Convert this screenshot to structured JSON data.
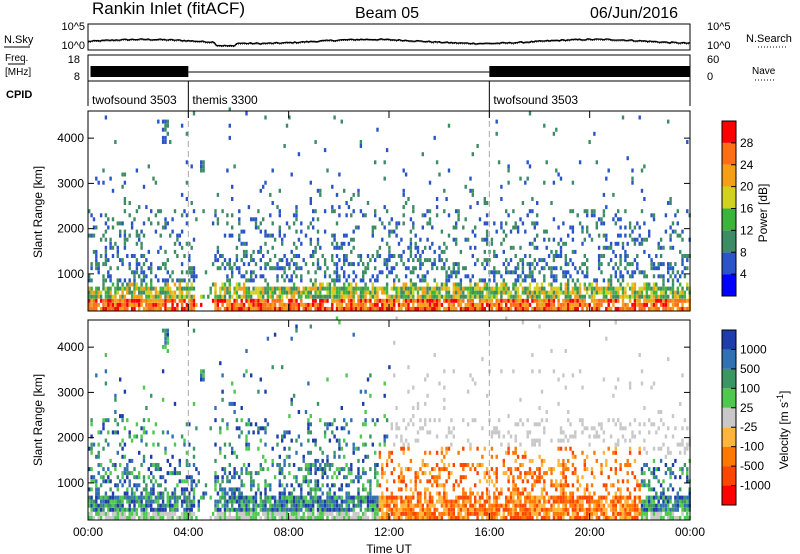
{
  "header": {
    "station": "Rankin Inlet (fitACF)",
    "beam": "Beam 05",
    "date": "06/Jun/2016"
  },
  "noise_panel": {
    "left_label": "N.Sky",
    "right_label": "N.Search",
    "left_ticks": [
      "10^5",
      "10^0"
    ],
    "right_ticks": [
      "10^5",
      "10^0"
    ],
    "right_legend_line": "dotted"
  },
  "freq_panel": {
    "left_label_1": "Freq.",
    "left_label_2": "[MHz]",
    "left_ticks": [
      "18",
      "8"
    ],
    "right_label": "Nave",
    "right_ticks": [
      "60",
      "0"
    ]
  },
  "cpid": {
    "label": "CPID",
    "segments": [
      {
        "name": "twofsound 3503",
        "start": 0.0,
        "end": 4.0
      },
      {
        "name": "themis 3300",
        "start": 4.0,
        "end": 16.0
      },
      {
        "name": "twofsound 3503",
        "start": 16.0,
        "end": 24.0
      }
    ]
  },
  "chart_data": [
    {
      "type": "heatmap",
      "name": "power",
      "ylabel": "Slant Range [km]",
      "xlim": [
        0,
        24
      ],
      "ylim": [
        180,
        4600
      ],
      "yticks": [
        "1000",
        "2000",
        "3000",
        "4000"
      ],
      "colorbar": {
        "label": "Power [dB]",
        "ticks": [
          "28",
          "24",
          "20",
          "16",
          "12",
          "8",
          "4"
        ],
        "colors": [
          "#0000ff",
          "#2a55c8",
          "#3c8c64",
          "#3cb43c",
          "#d2d21e",
          "#f5a014",
          "#ff6e14",
          "#ff0000"
        ]
      }
    },
    {
      "type": "heatmap",
      "name": "velocity",
      "ylabel": "Slant Range [km]",
      "xlabel": "Time UT",
      "xlim": [
        0,
        24
      ],
      "ylim": [
        180,
        4600
      ],
      "yticks": [
        "1000",
        "2000",
        "3000",
        "4000"
      ],
      "xticks": [
        "00:00",
        "04:00",
        "08:00",
        "12:00",
        "16:00",
        "20:00",
        "00:00"
      ],
      "colorbar": {
        "label": "Velocity [m s^-1]",
        "ticks": [
          "1000",
          "500",
          "100",
          "25",
          "-25",
          "-100",
          "-500",
          "-1000"
        ],
        "colors": [
          "#ff0000",
          "#ff4600",
          "#ff7800",
          "#ffb43c",
          "#c8c8c8",
          "#50c850",
          "#3c9664",
          "#3270b4",
          "#1e3caa"
        ]
      }
    }
  ],
  "dashed_markers_hours": [
    4.0,
    16.0
  ]
}
